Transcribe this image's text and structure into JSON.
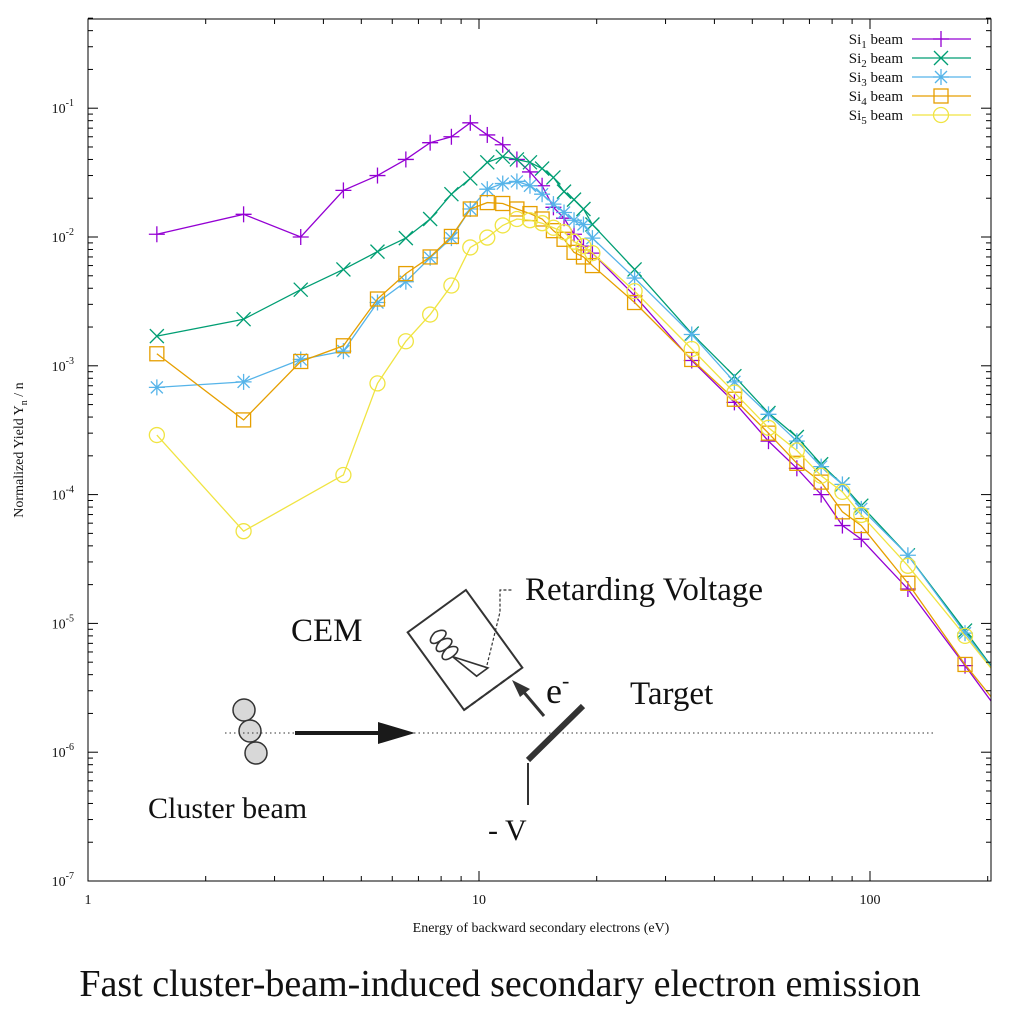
{
  "chart_data": {
    "type": "line",
    "title": "",
    "xlabel": "Energy  of backward   secondary   electrons    (eV)",
    "ylabel": "Normalized  Yield Y",
    "ylabel_sub": "n",
    "ylabel_tail": " / n",
    "xscale": "log",
    "yscale": "log",
    "xlim": [
      1,
      200
    ],
    "ylim": [
      1e-07,
      0.6
    ],
    "grid": false,
    "legend_position": "top-right",
    "x_ticks": [
      {
        "value": 1,
        "label": "1"
      },
      {
        "value": 10,
        "label": "10"
      },
      {
        "value": 100,
        "label": "100"
      }
    ],
    "y_ticks": [
      {
        "value": 0.1,
        "label": "10",
        "exp": "-1"
      },
      {
        "value": 0.01,
        "label": "10",
        "exp": "-2"
      },
      {
        "value": 0.001,
        "label": "10",
        "exp": "-3"
      },
      {
        "value": 0.0001,
        "label": "10",
        "exp": "-4"
      },
      {
        "value": 1e-05,
        "label": "10",
        "exp": "-5"
      },
      {
        "value": 1e-06,
        "label": "10",
        "exp": "-6"
      },
      {
        "value": 1e-07,
        "label": "10",
        "exp": "-7"
      }
    ],
    "series": [
      {
        "name": "Si1 beam",
        "label_main": "Si",
        "label_sub": "1",
        "label_tail": " beam",
        "color": "#9400d3",
        "marker": "plus",
        "x": [
          1.5,
          2.5,
          3.5,
          4.5,
          5.5,
          6.5,
          7.5,
          8.5,
          9.5,
          10.5,
          11.5,
          12.5,
          13.5,
          14.5,
          15.5,
          16.5,
          17.5,
          18.5,
          19.5,
          25,
          35,
          45,
          55,
          65,
          75,
          85,
          95,
          125,
          175
        ],
        "y": [
          0.0105,
          0.015,
          0.01,
          0.023,
          0.03,
          0.04,
          0.054,
          0.06,
          0.077,
          0.062,
          0.052,
          0.04,
          0.032,
          0.025,
          0.017,
          0.014,
          0.0105,
          0.0085,
          0.0075,
          0.0035,
          0.0011,
          0.00052,
          0.00026,
          0.00016,
          0.0001,
          5.75e-05,
          4.5e-05,
          1.85e-05,
          4.7e-06
        ],
        "y_at_edge": 2.5e-06
      },
      {
        "name": "Si2 beam",
        "label_main": "Si",
        "label_sub": "2",
        "label_tail": " beam",
        "color": "#009e73",
        "marker": "x",
        "x": [
          1.5,
          2.5,
          3.5,
          4.5,
          5.5,
          6.5,
          7.5,
          8.5,
          9.5,
          10.5,
          11.5,
          12.5,
          13.5,
          14.5,
          15.5,
          16.5,
          17.5,
          18.5,
          19.5,
          25,
          35,
          45,
          55,
          65,
          75,
          85,
          95,
          125,
          175
        ],
        "y": [
          0.0017,
          0.0023,
          0.0039,
          0.0056,
          0.0077,
          0.0098,
          0.0138,
          0.0215,
          0.0285,
          0.038,
          0.042,
          0.04,
          0.038,
          0.034,
          0.029,
          0.0225,
          0.0195,
          0.0165,
          0.0125,
          0.0056,
          0.00178,
          0.00083,
          0.00043,
          0.00028,
          0.000172,
          0.00012,
          8.2e-05,
          3.38e-05,
          8.8e-06
        ],
        "y_at_edge": 4.7e-06
      },
      {
        "name": "Si3 beam",
        "label_main": "Si",
        "label_sub": "3",
        "label_tail": " beam",
        "color": "#56b4e9",
        "marker": "star",
        "x": [
          1.5,
          2.5,
          3.5,
          4.5,
          5.5,
          6.5,
          7.5,
          8.5,
          9.5,
          10.5,
          11.5,
          12.5,
          13.5,
          14.5,
          15.5,
          16.5,
          17.5,
          18.5,
          19.5,
          25,
          35,
          45,
          55,
          65,
          75,
          85,
          95,
          125,
          175
        ],
        "y": [
          0.00068,
          0.00075,
          0.00112,
          0.0013,
          0.0031,
          0.0045,
          0.0069,
          0.0098,
          0.0165,
          0.0235,
          0.026,
          0.027,
          0.025,
          0.0215,
          0.018,
          0.0155,
          0.0135,
          0.0125,
          0.0098,
          0.0048,
          0.00175,
          0.00075,
          0.00042,
          0.00026,
          0.000165,
          0.00012,
          7.75e-05,
          3.38e-05,
          8.4e-06
        ],
        "y_at_edge": 4.6e-06
      },
      {
        "name": "Si4 beam",
        "label_main": "Si",
        "label_sub": "4",
        "label_tail": " beam",
        "color": "#e69f00",
        "marker": "square",
        "x": [
          1.5,
          2.5,
          3.5,
          4.5,
          5.5,
          6.5,
          7.5,
          8.5,
          9.5,
          10.5,
          11.5,
          12.5,
          13.5,
          14.5,
          15.5,
          16.5,
          17.5,
          18.5,
          19.5,
          25,
          35,
          45,
          55,
          65,
          75,
          85,
          95,
          125,
          175
        ],
        "y": [
          0.00124,
          0.00038,
          0.00108,
          0.00143,
          0.0033,
          0.0052,
          0.007,
          0.0101,
          0.0165,
          0.0185,
          0.0182,
          0.0165,
          0.0152,
          0.0138,
          0.0112,
          0.0096,
          0.0076,
          0.007,
          0.006,
          0.0031,
          0.00112,
          0.00055,
          0.0003,
          0.000175,
          0.000125,
          7.35e-05,
          5.75e-05,
          2.05e-05,
          4.8e-06
        ],
        "y_at_edge": 2.7e-06
      },
      {
        "name": "Si5 beam",
        "label_main": "Si",
        "label_sub": "5",
        "label_tail": " beam",
        "color": "#f0e442",
        "marker": "circle",
        "x": [
          1.5,
          2.5,
          4.5,
          5.5,
          6.5,
          7.5,
          8.5,
          9.5,
          10.5,
          11.5,
          12.5,
          13.5,
          14.5,
          15.5,
          16.5,
          17.5,
          18.5,
          19.5,
          25,
          35,
          45,
          55,
          65,
          75,
          85,
          95,
          125,
          175
        ],
        "y": [
          0.00029,
          5.2e-05,
          0.000142,
          0.00073,
          0.00155,
          0.0025,
          0.0042,
          0.0083,
          0.0099,
          0.0123,
          0.0138,
          0.0135,
          0.0128,
          0.0118,
          0.0109,
          0.0092,
          0.0085,
          0.0075,
          0.0038,
          0.00135,
          0.00062,
          0.00033,
          0.00022,
          0.00014,
          0.000105,
          6.95e-05,
          2.8e-05,
          8e-06
        ],
        "y_at_edge": 4.5e-06
      }
    ]
  },
  "inset": {
    "retarding_voltage": "Retarding Voltage",
    "cem": "CEM",
    "electron": "e",
    "electron_sup": "-",
    "target": "Target",
    "cluster_beam": "Cluster beam",
    "bias": "- V"
  },
  "caption": "Fast cluster-beam-induced secondary electron emission"
}
